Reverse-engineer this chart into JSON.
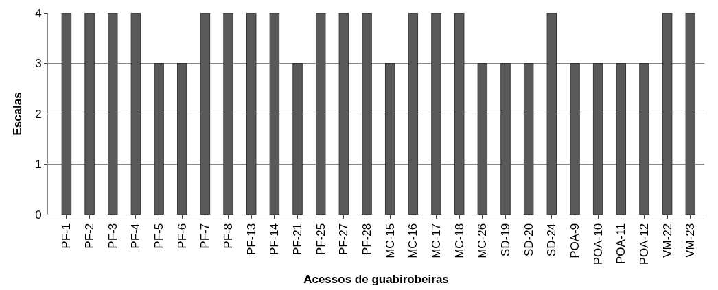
{
  "chart_data": {
    "type": "bar",
    "xlabel": "Acessos de guabirobeiras",
    "ylabel": "Escalas",
    "categories": [
      "PF-1",
      "PF-2",
      "PF-3",
      "PF-4",
      "PF-5",
      "PF-6",
      "PF-7",
      "PF-8",
      "PF-13",
      "PF-14",
      "PF-21",
      "PF-25",
      "PF-27",
      "PF-28",
      "MC-15",
      "MC-16",
      "MC-17",
      "MC-18",
      "MC-26",
      "SD-19",
      "SD-20",
      "SD-24",
      "POA-9",
      "POA-10",
      "POA-11",
      "POA-12",
      "VM-22",
      "VM-23"
    ],
    "values": [
      4,
      4,
      4,
      4,
      3,
      3,
      4,
      4,
      4,
      4,
      3,
      4,
      4,
      4,
      3,
      4,
      4,
      4,
      3,
      3,
      3,
      4,
      3,
      3,
      3,
      3,
      4,
      4
    ],
    "color": "#595959",
    "ylim": [
      0,
      4
    ],
    "yticks": [
      0,
      1,
      2,
      3,
      4
    ],
    "grid": "y"
  }
}
